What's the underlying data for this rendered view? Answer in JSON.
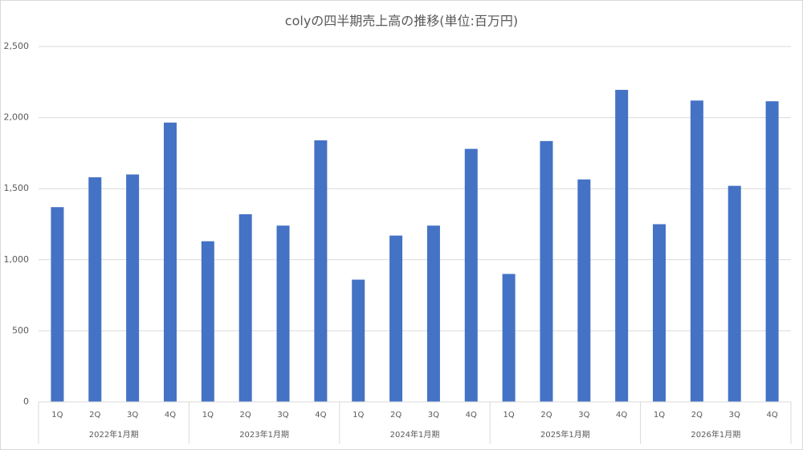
{
  "chart_data": {
    "type": "bar",
    "title": "colyの四半期売上高の推移(単位:百万円)",
    "categories": [
      "1Q",
      "2Q",
      "3Q",
      "4Q",
      "1Q",
      "2Q",
      "3Q",
      "4Q",
      "1Q",
      "2Q",
      "3Q",
      "4Q",
      "1Q",
      "2Q",
      "3Q",
      "4Q",
      "1Q",
      "2Q",
      "3Q",
      "4Q"
    ],
    "groups": [
      "2022年1月期",
      "2023年1月期",
      "2024年1月期",
      "2025年1月期",
      "2026年1月期"
    ],
    "values": [
      1370,
      1580,
      1600,
      1965,
      1130,
      1320,
      1240,
      1840,
      860,
      1170,
      1240,
      1780,
      900,
      1835,
      1565,
      2195,
      1250,
      2120,
      1520,
      2115
    ],
    "color": "#4472c4",
    "ylim": [
      0,
      2500
    ],
    "yticks": [
      0,
      500,
      {
        "value": 1000,
        "label": "1,000"
      },
      {
        "value": 1500,
        "label": "1,500"
      },
      {
        "value": 2000,
        "label": "2,000"
      },
      {
        "value": 2500,
        "label": "2,500"
      }
    ],
    "grid": true
  }
}
